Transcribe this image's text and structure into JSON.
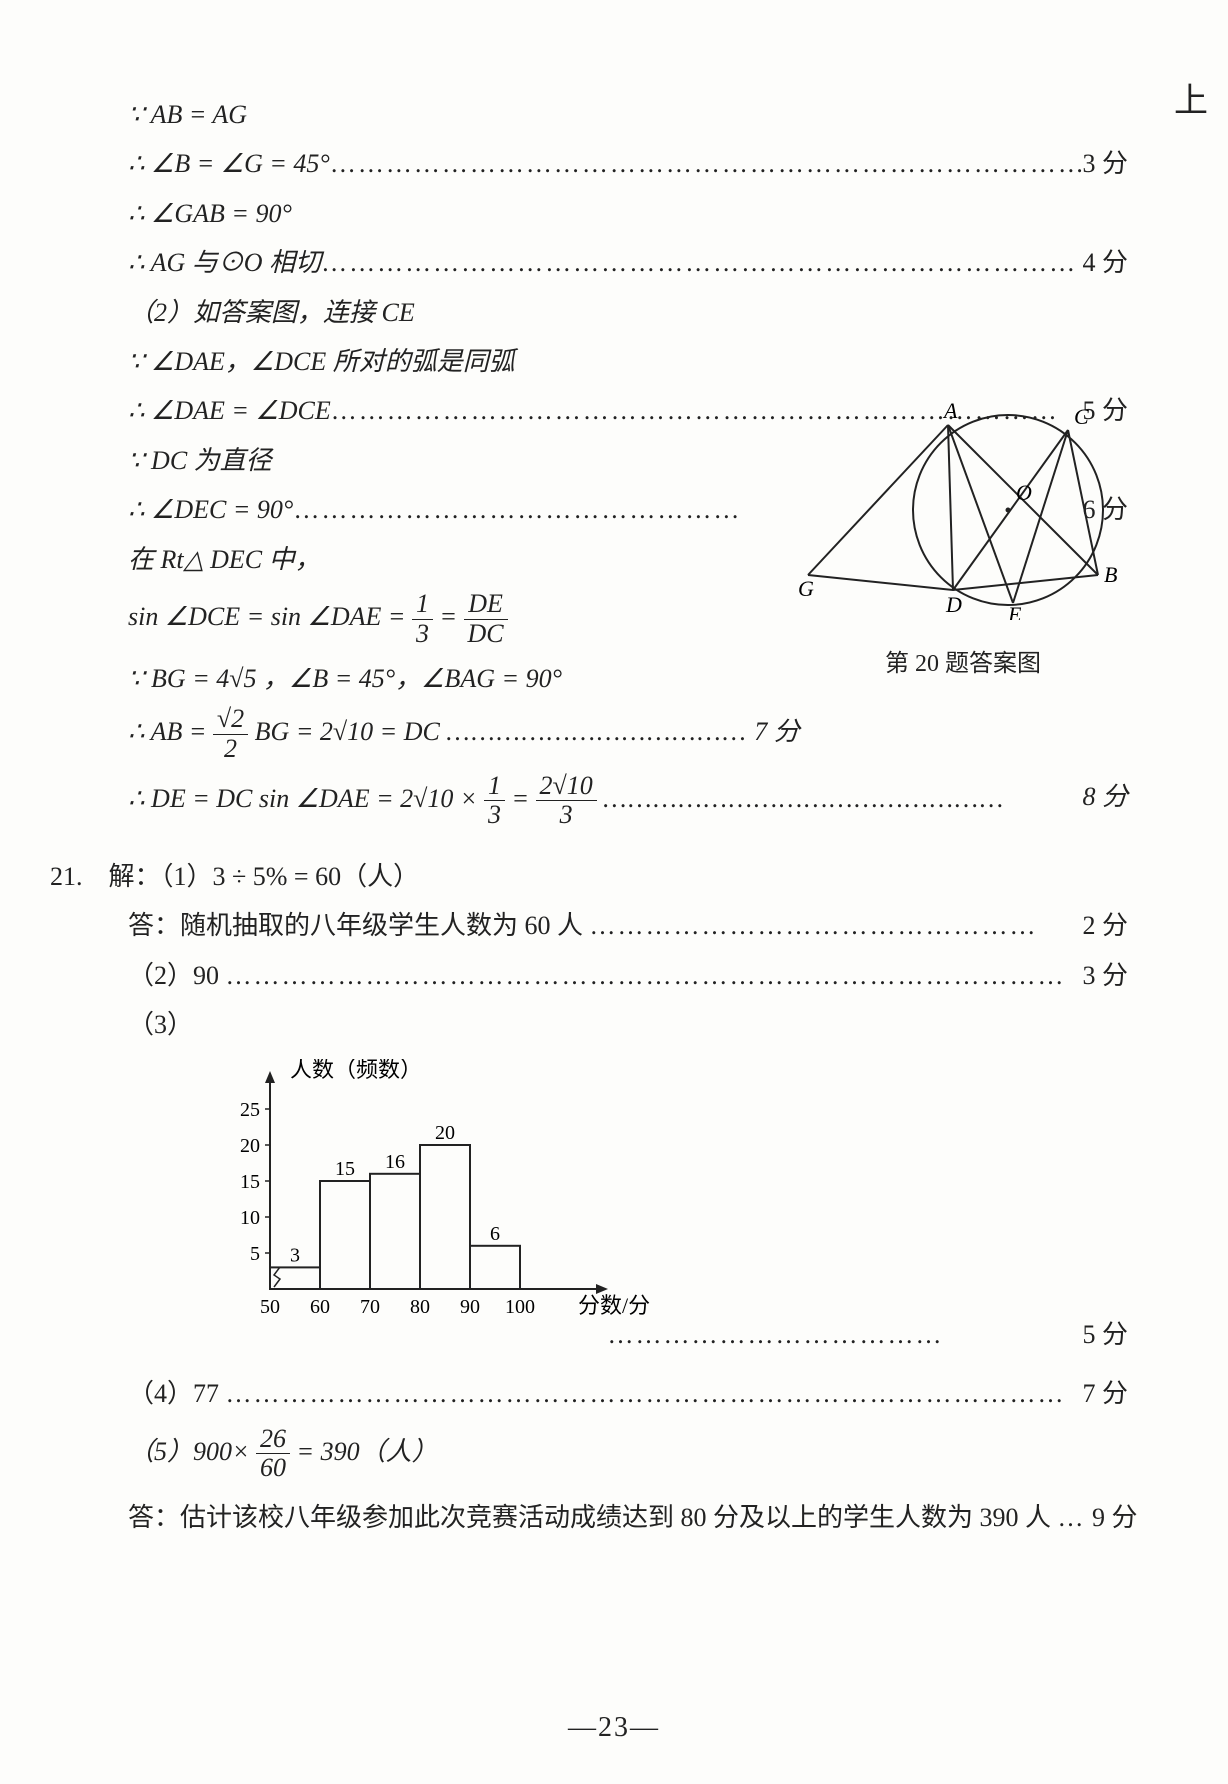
{
  "margin_mark": "上",
  "lines": [
    {
      "indent": 1,
      "html": "∵ <i>AB</i> = <i>AG</i>",
      "score": ""
    },
    {
      "indent": 1,
      "html": "∴ ∠<i>B</i> = ∠<i>G</i> = 45°",
      "dots": "………………………………………………………………………",
      "score": "3 分"
    },
    {
      "indent": 1,
      "html": "∴ ∠<i>GAB</i> = 90°",
      "score": ""
    },
    {
      "indent": 1,
      "html": "∴ <i>AG</i> 与⊙<i>O</i> 相切",
      "dots": "………………………………………………………………………",
      "score": "4 分"
    },
    {
      "indent": 1,
      "html": "（2）如答案图，连接 <i>CE</i>",
      "score": ""
    },
    {
      "indent": 1,
      "html": "∵ ∠<i>DAE</i>，∠<i>DCE</i> 所对的弧是同弧",
      "score": ""
    },
    {
      "indent": 1,
      "html": "∴ ∠<i>DAE</i> = ∠<i>DCE</i>",
      "dots": "……………………………………………………………………",
      "score": "5 分"
    },
    {
      "indent": 1,
      "html": "∵ <i>DC</i> 为直径",
      "score": ""
    },
    {
      "indent": 1,
      "html": "∴ ∠<i>DEC</i> = 90°",
      "dots": "…………………………………………",
      "score": "6 分"
    },
    {
      "indent": 1,
      "html": "在 Rt△ <i>DEC</i> 中，",
      "score": ""
    }
  ],
  "sin_line": {
    "prefix": "sin ∠<i>DCE</i> = sin ∠<i>DAE</i> =",
    "f1n": "1",
    "f1d": "3",
    "eq": "=",
    "f2n": "DE",
    "f2d": "DC"
  },
  "bg_line": "∵ <i>BG</i> = 4√5 ，∠<i>B</i> = 45°，∠<i>BAG</i> = 90°",
  "ab_line": {
    "prefix": "∴ <i>AB</i> =",
    "fn": "√2",
    "fd": "2",
    "mid": "<i>BG</i> = 2√10 = <i>DC</i>",
    "dots": "………………………………",
    "score": "7 分"
  },
  "de_line": {
    "prefix": "∴ <i>DE</i> = <i>DC</i> sin ∠<i>DAE</i> = 2√10 ×",
    "f1n": "1",
    "f1d": "3",
    "eq": "=",
    "f2n": "2√10",
    "f2d": "3",
    "dots": "…………………………………………",
    "score": "8 分"
  },
  "q21": {
    "header": "21.　解：（1）3 ÷ 5% = 60（人）",
    "ans1": {
      "text": "答：随机抽取的八年级学生人数为 60 人",
      "dots": "…………………………………………",
      "score": "2 分"
    },
    "p2": {
      "text": "（2）90",
      "dots": "………………………………………………………………………………",
      "score": "3 分"
    },
    "p3": "（3）",
    "chart_ylabel": "人数（频数）",
    "ytick": [
      "25",
      "20",
      "15",
      "10",
      "5"
    ],
    "bars": [
      3,
      15,
      16,
      20,
      6
    ],
    "bar_labels": [
      "3",
      "15",
      "16",
      "20",
      "6"
    ],
    "xtick": [
      "50",
      "60",
      "70",
      "80",
      "90",
      "100"
    ],
    "xlabel": "分数/分",
    "p3score": {
      "dots": "………………………………",
      "score": "5 分"
    },
    "p4": {
      "text": "（4）77",
      "dots": "………………………………………………………………………………",
      "score": "7 分"
    },
    "p5": {
      "prefix": "（5）900×",
      "fn": "26",
      "fd": "60",
      "suffix": " = 390（人）"
    },
    "ans5": {
      "text": "答：估计该校八年级参加此次竞赛活动成绩达到 80 分及以上的学生人数为 390 人",
      "dots": "…",
      "score": "9 分"
    }
  },
  "figure": {
    "caption": "第 20 题答案图",
    "labels": {
      "A": "A",
      "B": "B",
      "C": "C",
      "D": "D",
      "E": "E",
      "G": "G",
      "O": "O"
    }
  },
  "page_num": "—23—"
}
